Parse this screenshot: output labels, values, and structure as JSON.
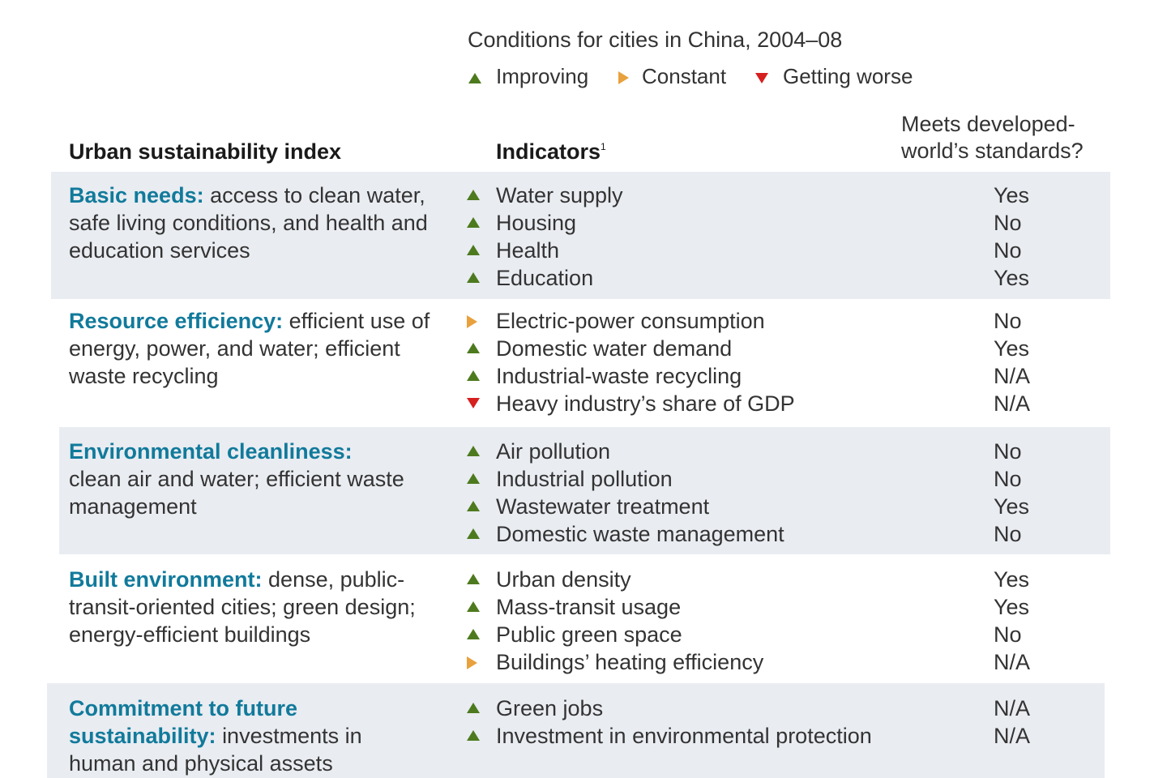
{
  "header": {
    "title": "Conditions for cities in China, 2004–08",
    "legend": [
      {
        "icon": "up-triangle-icon",
        "label": "Improving",
        "color": "#4d7a1e"
      },
      {
        "icon": "right-triangle-icon",
        "label": "Constant",
        "color": "#e8a13d"
      },
      {
        "icon": "down-triangle-icon",
        "label": "Getting worse",
        "color": "#d61f1f"
      }
    ]
  },
  "columns": {
    "index": "Urban sustainability index",
    "indicators": "Indicators",
    "indicators_note": "1",
    "standards_line1": "Meets developed-",
    "standards_line2": "world’s standards?"
  },
  "groups": [
    {
      "title": "Basic needs:",
      "description": "access to clean water, safe living conditions, and health and education services",
      "indicators": [
        {
          "trend": "improving",
          "name": "Water supply",
          "meets": "Yes"
        },
        {
          "trend": "improving",
          "name": "Housing",
          "meets": "No"
        },
        {
          "trend": "improving",
          "name": "Health",
          "meets": "No"
        },
        {
          "trend": "improving",
          "name": "Education",
          "meets": "Yes"
        }
      ]
    },
    {
      "title": "Resource efficiency:",
      "description": "efficient use of energy, power, and water; efficient waste recycling",
      "indicators": [
        {
          "trend": "constant",
          "name": "Electric-power consumption",
          "meets": "No"
        },
        {
          "trend": "improving",
          "name": "Domestic water demand",
          "meets": "Yes"
        },
        {
          "trend": "improving",
          "name": "Industrial-waste recycling",
          "meets": "N/A"
        },
        {
          "trend": "worse",
          "name": "Heavy industry’s share of GDP",
          "meets": "N/A"
        }
      ]
    },
    {
      "title": "Environmental cleanliness:",
      "description": "clean air and water; efficient waste management",
      "indicators": [
        {
          "trend": "improving",
          "name": "Air pollution",
          "meets": "No"
        },
        {
          "trend": "improving",
          "name": "Industrial pollution",
          "meets": "No"
        },
        {
          "trend": "improving",
          "name": "Wastewater treatment",
          "meets": "Yes"
        },
        {
          "trend": "improving",
          "name": "Domestic waste management",
          "meets": "No"
        }
      ]
    },
    {
      "title": "Built environment:",
      "description": "dense, public-transit-oriented cities; green design; energy-efficient buildings",
      "indicators": [
        {
          "trend": "improving",
          "name": "Urban density",
          "meets": "Yes"
        },
        {
          "trend": "improving",
          "name": "Mass-transit usage",
          "meets": "Yes"
        },
        {
          "trend": "improving",
          "name": "Public green space",
          "meets": "No"
        },
        {
          "trend": "constant",
          "name": "Buildings’ heating efficiency",
          "meets": "N/A"
        }
      ]
    },
    {
      "title": "Commitment to future sustainability:",
      "description": "investments in human and physical assets",
      "indicators": [
        {
          "trend": "improving",
          "name": "Green jobs",
          "meets": "N/A"
        },
        {
          "trend": "improving",
          "name": "Investment in environmental protection",
          "meets": "N/A"
        }
      ]
    }
  ]
}
